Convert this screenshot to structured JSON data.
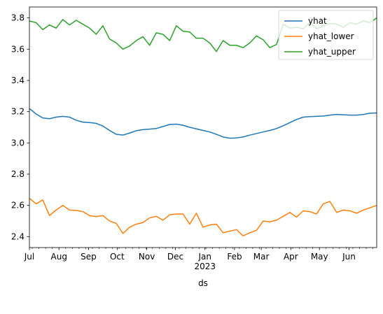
{
  "chart_data": {
    "type": "line",
    "xlabel": "ds",
    "ylabel": "",
    "title": "",
    "x_unit": "date",
    "xlim": [
      "2022-07-01",
      "2023-06-30"
    ],
    "ylim": [
      2.33,
      3.87
    ],
    "y_ticks": [
      2.4,
      2.6,
      2.8,
      3.0,
      3.2,
      3.4,
      3.6,
      3.8
    ],
    "y_tick_labels": [
      "2.4",
      "2.6",
      "2.8",
      "3.0",
      "3.2",
      "3.4",
      "3.6",
      "3.8"
    ],
    "x_ticks": [
      {
        "date": "2022-07-01",
        "label": "Jul"
      },
      {
        "date": "2022-08-01",
        "label": "Aug"
      },
      {
        "date": "2022-09-01",
        "label": "Sep"
      },
      {
        "date": "2022-10-01",
        "label": "Oct"
      },
      {
        "date": "2022-11-01",
        "label": "Nov"
      },
      {
        "date": "2022-12-01",
        "label": "Dec"
      },
      {
        "date": "2023-01-01",
        "label": "Jan",
        "sublabel": "2023"
      },
      {
        "date": "2023-02-01",
        "label": "Feb"
      },
      {
        "date": "2023-03-01",
        "label": "Mar"
      },
      {
        "date": "2023-04-01",
        "label": "Apr"
      },
      {
        "date": "2023-05-01",
        "label": "May"
      },
      {
        "date": "2023-06-01",
        "label": "Jun"
      }
    ],
    "grid": false,
    "legend_position": "top-right",
    "x": [
      "2022-07-01",
      "2022-07-08",
      "2022-07-15",
      "2022-07-22",
      "2022-07-29",
      "2022-08-05",
      "2022-08-12",
      "2022-08-19",
      "2022-08-26",
      "2022-09-02",
      "2022-09-09",
      "2022-09-16",
      "2022-09-23",
      "2022-09-30",
      "2022-10-07",
      "2022-10-14",
      "2022-10-21",
      "2022-10-28",
      "2022-11-04",
      "2022-11-11",
      "2022-11-18",
      "2022-11-25",
      "2022-12-02",
      "2022-12-09",
      "2022-12-16",
      "2022-12-23",
      "2022-12-30",
      "2023-01-06",
      "2023-01-13",
      "2023-01-20",
      "2023-01-27",
      "2023-02-03",
      "2023-02-10",
      "2023-02-17",
      "2023-02-24",
      "2023-03-03",
      "2023-03-10",
      "2023-03-17",
      "2023-03-24",
      "2023-03-31",
      "2023-04-07",
      "2023-04-14",
      "2023-04-21",
      "2023-04-28",
      "2023-05-05",
      "2023-05-12",
      "2023-05-19",
      "2023-05-26",
      "2023-06-02",
      "2023-06-09",
      "2023-06-16",
      "2023-06-23",
      "2023-06-30"
    ],
    "series": [
      {
        "name": "yhat",
        "color": "#1f77b4",
        "values": [
          3.22,
          3.185,
          3.16,
          3.155,
          3.165,
          3.17,
          3.165,
          3.145,
          3.133,
          3.13,
          3.125,
          3.108,
          3.08,
          3.055,
          3.05,
          3.063,
          3.078,
          3.085,
          3.088,
          3.092,
          3.105,
          3.118,
          3.12,
          3.113,
          3.1,
          3.09,
          3.08,
          3.07,
          3.055,
          3.038,
          3.03,
          3.032,
          3.038,
          3.05,
          3.06,
          3.07,
          3.08,
          3.092,
          3.11,
          3.13,
          3.15,
          3.165,
          3.168,
          3.17,
          3.172,
          3.178,
          3.182,
          3.18,
          3.178,
          3.178,
          3.182,
          3.19,
          3.192
        ]
      },
      {
        "name": "yhat_lower",
        "color": "#ff7f0e",
        "values": [
          2.645,
          2.61,
          2.635,
          2.535,
          2.57,
          2.6,
          2.57,
          2.568,
          2.56,
          2.535,
          2.528,
          2.535,
          2.5,
          2.485,
          2.42,
          2.46,
          2.48,
          2.49,
          2.52,
          2.53,
          2.505,
          2.54,
          2.545,
          2.545,
          2.48,
          2.55,
          2.46,
          2.475,
          2.48,
          2.425,
          2.435,
          2.445,
          2.405,
          2.425,
          2.44,
          2.5,
          2.495,
          2.505,
          2.53,
          2.555,
          2.525,
          2.565,
          2.56,
          2.545,
          2.61,
          2.625,
          2.555,
          2.57,
          2.565,
          2.55,
          2.57,
          2.585,
          2.6
        ]
      },
      {
        "name": "yhat_upper",
        "color": "#2ca02c",
        "values": [
          3.78,
          3.77,
          3.725,
          3.755,
          3.735,
          3.79,
          3.755,
          3.785,
          3.76,
          3.735,
          3.695,
          3.75,
          3.665,
          3.64,
          3.6,
          3.62,
          3.655,
          3.68,
          3.625,
          3.705,
          3.695,
          3.655,
          3.75,
          3.715,
          3.71,
          3.67,
          3.67,
          3.64,
          3.585,
          3.655,
          3.625,
          3.625,
          3.61,
          3.64,
          3.685,
          3.66,
          3.61,
          3.63,
          3.76,
          3.735,
          3.74,
          3.73,
          3.77,
          3.73,
          3.75,
          3.765,
          3.76,
          3.74,
          3.77,
          3.76,
          3.78,
          3.77,
          3.8
        ]
      }
    ]
  }
}
